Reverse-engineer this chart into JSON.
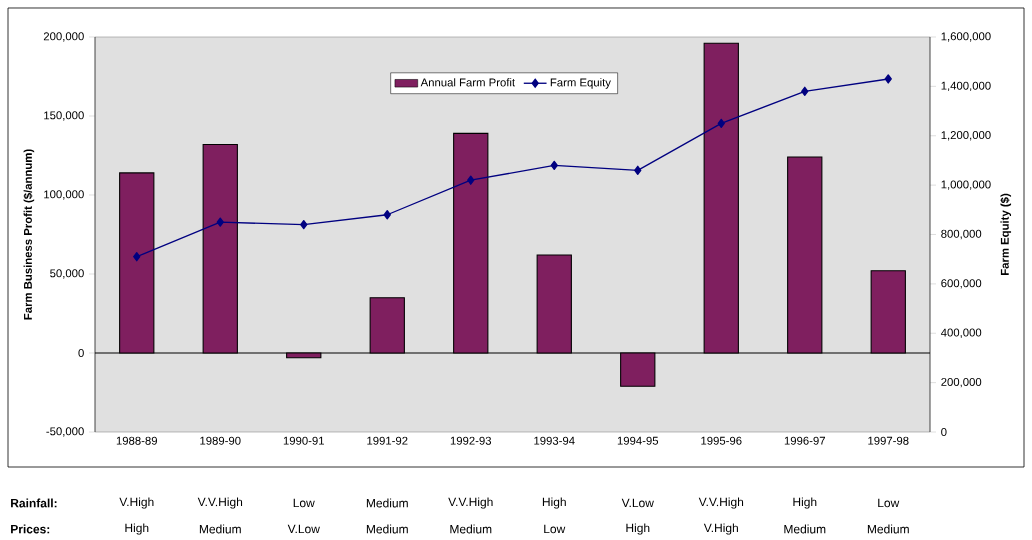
{
  "chart_data": {
    "type": "bar",
    "categories": [
      "1988-89",
      "1989-90",
      "1990-91",
      "1991-92",
      "1992-93",
      "1993-94",
      "1994-95",
      "1995-96",
      "1996-97",
      "1997-98"
    ],
    "series": [
      {
        "name": "Annual Farm Profit",
        "color": "#7f1f5f",
        "values": [
          114000,
          132000,
          -3000,
          35000,
          139000,
          62000,
          -21000,
          196000,
          124000,
          52000
        ]
      },
      {
        "name": "Farm Equity",
        "type": "line",
        "axis": "y2",
        "color": "#000080",
        "marker": "diamond",
        "values": [
          710000,
          850000,
          840000,
          880000,
          1020000,
          1080000,
          1060000,
          1250000,
          1380000,
          1430000
        ]
      }
    ],
    "ylabel": "Farm Business Profit ($/annum)",
    "y2label": "Farm Equity ($)",
    "ylim": [
      -50000,
      200000
    ],
    "yticks": [
      {
        "value": -50000,
        "label": "-50,000"
      },
      0,
      {
        "value": 50000,
        "label": "50,000"
      },
      {
        "value": 100000,
        "label": "100,000"
      },
      {
        "value": 150000,
        "label": "150,000"
      },
      {
        "value": 200000,
        "label": "200,000"
      }
    ],
    "y2lim": [
      0,
      1600000
    ],
    "y2ticks": [
      0,
      {
        "value": 200000,
        "label": "200,000"
      },
      {
        "value": 400000,
        "label": "400,000"
      },
      {
        "value": 600000,
        "label": "600,000"
      },
      {
        "value": 800000,
        "label": "800,000"
      },
      {
        "value": 1000000,
        "label": "1,000,000"
      },
      {
        "value": 1200000,
        "label": "1,200,000"
      },
      {
        "value": 1400000,
        "label": "1,400,000"
      },
      {
        "value": 1600000,
        "label": "1,600,000"
      }
    ],
    "legend": "top",
    "annotations": [
      "Rainfall:",
      "V.High",
      "V.V.High",
      "Low",
      "Medium",
      "V.V.High",
      "High",
      "V.Low",
      "V.V.High",
      "High",
      "Low",
      "Prices:",
      "High",
      "Medium",
      "V.Low",
      "Medium",
      "Medium",
      "Low",
      "High",
      "V.High",
      "Medium",
      "Medium"
    ]
  }
}
